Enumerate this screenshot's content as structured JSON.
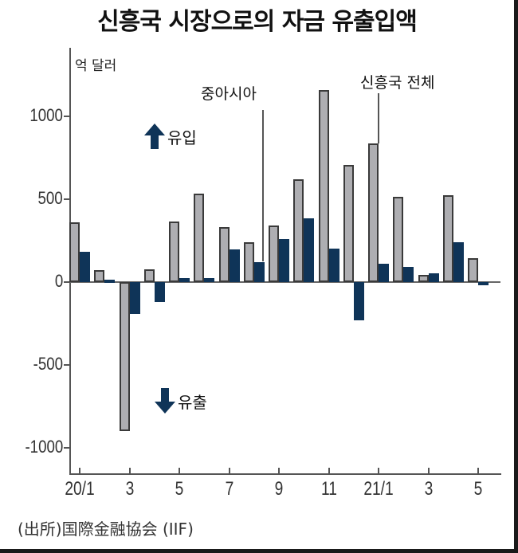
{
  "title": "신흥국 시장으로의 자금 유출입액",
  "unit_label": "억 달러",
  "annotations": {
    "china_asia": "중아시아",
    "em_total": "신흥국 전체"
  },
  "legend": {
    "inflow": "유입",
    "outflow": "유출",
    "arrow_color": "#0f3458"
  },
  "source": "(出所)国際金融協会 (IIF)",
  "colors": {
    "total": "#aeaeb2",
    "china": "#0f3458",
    "outline": "#3a3a3a"
  },
  "y_ticks": [
    "1000",
    "500",
    "0",
    "-500",
    "-1000"
  ],
  "x_ticks": [
    "20/1",
    "3",
    "5",
    "7",
    "9",
    "11",
    "21/1",
    "3",
    "5"
  ],
  "chart_data": {
    "type": "bar",
    "title": "신흥국 시장으로의 자금 유출입액",
    "ylabel": "억 달러",
    "xlabel": "",
    "ylim": [
      -1100,
      1350
    ],
    "yticks": [
      -1000,
      -500,
      0,
      500,
      1000
    ],
    "grid": false,
    "legend_position": "inline annotations",
    "categories": [
      "20/1",
      "20/2",
      "20/3",
      "20/4",
      "20/5",
      "20/6",
      "20/7",
      "20/8",
      "20/9",
      "20/10",
      "20/11",
      "20/12",
      "21/1",
      "21/2",
      "21/3",
      "21/4",
      "21/5"
    ],
    "x_tick_labels": [
      "20/1",
      "3",
      "5",
      "7",
      "9",
      "11",
      "21/1",
      "3",
      "5"
    ],
    "series": [
      {
        "name": "신흥국 전체",
        "color": "#aeaeb2",
        "values": [
          360,
          70,
          -900,
          75,
          365,
          535,
          330,
          240,
          340,
          620,
          1160,
          705,
          835,
          515,
          45,
          525,
          145
        ]
      },
      {
        "name": "중아시아",
        "color": "#0f3458",
        "values": [
          185,
          15,
          -190,
          -120,
          25,
          25,
          195,
          120,
          260,
          385,
          200,
          -230,
          110,
          90,
          55,
          240,
          -20
        ]
      }
    ],
    "annotations": [
      "유입 (up arrow)",
      "유출 (down arrow)"
    ]
  }
}
